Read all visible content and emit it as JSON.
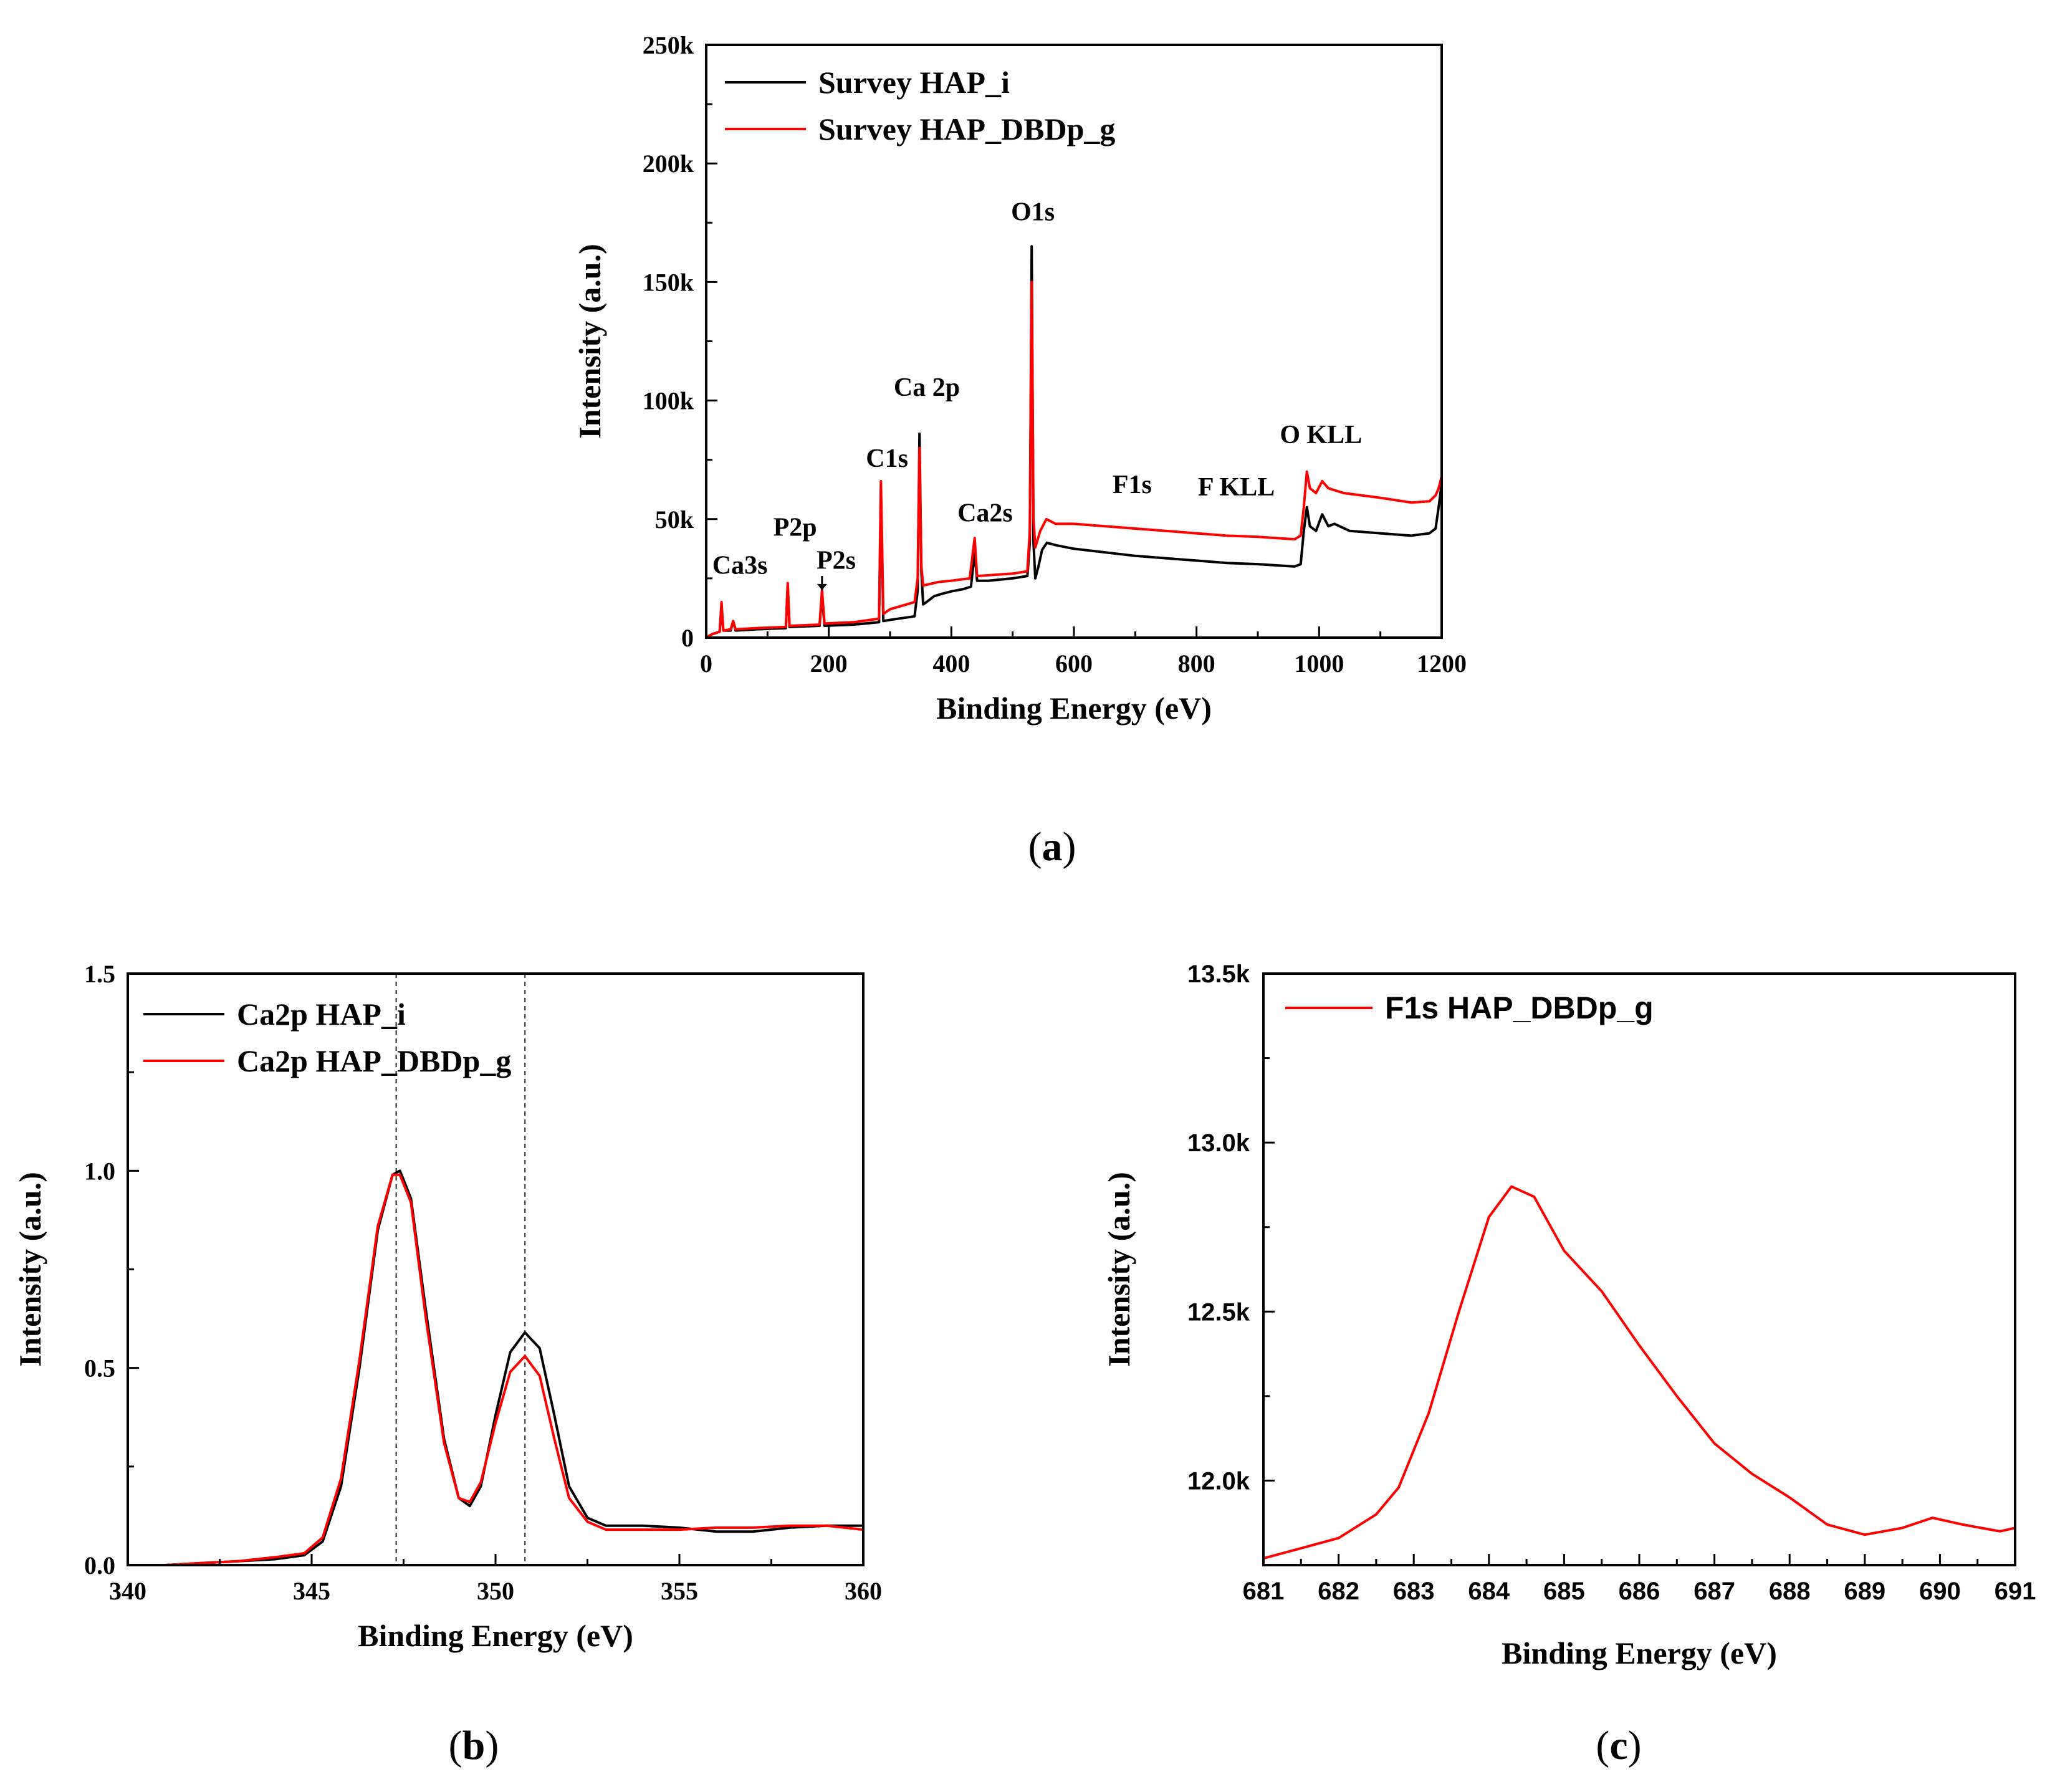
{
  "figure": {
    "captions": {
      "a": "(a)",
      "b": "(b)",
      "c": "(c)"
    },
    "caption_letters": {
      "a": "a",
      "b": "b",
      "c": "c"
    }
  },
  "chart_data": [
    {
      "id": "a",
      "type": "line",
      "title": "",
      "xlabel": "Binding Energy (eV)",
      "ylabel": "Intensity (a.u.)",
      "xlim": [
        0,
        1200
      ],
      "ylim": [
        0,
        250000
      ],
      "x_ticks": [
        0,
        200,
        400,
        600,
        800,
        1000,
        1200
      ],
      "x_tick_labels": [
        "0",
        "200",
        "400",
        "600",
        "800",
        "1000",
        "1200"
      ],
      "y_ticks": [
        0,
        50000,
        100000,
        150000,
        200000,
        250000
      ],
      "y_tick_labels": [
        "0",
        "50k",
        "100k",
        "150k",
        "200k",
        "250k"
      ],
      "legend_position": "top-left",
      "series": [
        {
          "name": "Survey HAP_i",
          "color": "#000000",
          "points": [
            [
              0,
              0
            ],
            [
              10,
              1500
            ],
            [
              22,
              2500
            ],
            [
              25,
              13000
            ],
            [
              28,
              3000
            ],
            [
              40,
              3000
            ],
            [
              44,
              7000
            ],
            [
              48,
              3000
            ],
            [
              80,
              3500
            ],
            [
              130,
              4000
            ],
            [
              133,
              22000
            ],
            [
              136,
              4500
            ],
            [
              185,
              5000
            ],
            [
              189,
              18000
            ],
            [
              193,
              5000
            ],
            [
              240,
              5500
            ],
            [
              282,
              6500
            ],
            [
              285,
              62000
            ],
            [
              289,
              7000
            ],
            [
              300,
              7500
            ],
            [
              340,
              9000
            ],
            [
              345,
              20000
            ],
            [
              348,
              86000
            ],
            [
              351,
              28000
            ],
            [
              354,
              14000
            ],
            [
              362,
              15500
            ],
            [
              372,
              17500
            ],
            [
              385,
              18500
            ],
            [
              400,
              19500
            ],
            [
              420,
              20500
            ],
            [
              432,
              21500
            ],
            [
              438,
              36000
            ],
            [
              442,
              24000
            ],
            [
              460,
              24000
            ],
            [
              500,
              25000
            ],
            [
              524,
              26000
            ],
            [
              528,
              40000
            ],
            [
              531,
              165000
            ],
            [
              534,
              40000
            ],
            [
              537,
              25000
            ],
            [
              542,
              30000
            ],
            [
              548,
              37000
            ],
            [
              556,
              40000
            ],
            [
              570,
              39000
            ],
            [
              600,
              37500
            ],
            [
              650,
              36000
            ],
            [
              700,
              34500
            ],
            [
              750,
              33500
            ],
            [
              800,
              32500
            ],
            [
              850,
              31500
            ],
            [
              900,
              31000
            ],
            [
              960,
              30000
            ],
            [
              970,
              31000
            ],
            [
              975,
              45000
            ],
            [
              980,
              55000
            ],
            [
              985,
              47000
            ],
            [
              995,
              45000
            ],
            [
              1005,
              52000
            ],
            [
              1015,
              47000
            ],
            [
              1025,
              48000
            ],
            [
              1050,
              45000
            ],
            [
              1100,
              44000
            ],
            [
              1150,
              43000
            ],
            [
              1180,
              44000
            ],
            [
              1190,
              46000
            ],
            [
              1195,
              55000
            ],
            [
              1200,
              65000
            ]
          ]
        },
        {
          "name": "Survey HAP_DBDp_g",
          "color": "#ff0000",
          "points": [
            [
              0,
              0
            ],
            [
              10,
              1500
            ],
            [
              22,
              2500
            ],
            [
              25,
              15000
            ],
            [
              28,
              3000
            ],
            [
              40,
              3500
            ],
            [
              44,
              7000
            ],
            [
              48,
              3500
            ],
            [
              80,
              4000
            ],
            [
              130,
              4500
            ],
            [
              133,
              23000
            ],
            [
              136,
              5000
            ],
            [
              185,
              5500
            ],
            [
              189,
              20000
            ],
            [
              193,
              6000
            ],
            [
              240,
              6500
            ],
            [
              282,
              8000
            ],
            [
              285,
              66000
            ],
            [
              289,
              10000
            ],
            [
              300,
              12000
            ],
            [
              340,
              15000
            ],
            [
              345,
              25000
            ],
            [
              348,
              80000
            ],
            [
              351,
              30000
            ],
            [
              354,
              22000
            ],
            [
              380,
              23500
            ],
            [
              400,
              24000
            ],
            [
              430,
              25000
            ],
            [
              438,
              42000
            ],
            [
              442,
              26000
            ],
            [
              470,
              26500
            ],
            [
              500,
              27000
            ],
            [
              524,
              28000
            ],
            [
              528,
              45000
            ],
            [
              531,
              150000
            ],
            [
              534,
              50000
            ],
            [
              537,
              38000
            ],
            [
              545,
              45000
            ],
            [
              555,
              50000
            ],
            [
              570,
              48000
            ],
            [
              600,
              48000
            ],
            [
              650,
              47000
            ],
            [
              700,
              46000
            ],
            [
              750,
              45000
            ],
            [
              800,
              44000
            ],
            [
              850,
              43000
            ],
            [
              900,
              42500
            ],
            [
              960,
              41500
            ],
            [
              970,
              43000
            ],
            [
              975,
              55000
            ],
            [
              980,
              70000
            ],
            [
              985,
              63000
            ],
            [
              995,
              61000
            ],
            [
              1005,
              66000
            ],
            [
              1015,
              63000
            ],
            [
              1040,
              61000
            ],
            [
              1100,
              59000
            ],
            [
              1150,
              57000
            ],
            [
              1180,
              57500
            ],
            [
              1190,
              60000
            ],
            [
              1195,
              63000
            ],
            [
              1200,
              68000
            ]
          ]
        }
      ],
      "annotations": [
        {
          "text": "Ca3s",
          "x": 55,
          "y": 27000
        },
        {
          "text": "P2p",
          "x": 145,
          "y": 43000
        },
        {
          "text": "P2s",
          "x": 212,
          "y": 29000
        },
        {
          "text": "C1s",
          "x": 295,
          "y": 72000
        },
        {
          "text": "Ca 2p",
          "x": 360,
          "y": 102000
        },
        {
          "text": "Ca2s",
          "x": 455,
          "y": 49000
        },
        {
          "text": "O1s",
          "x": 533,
          "y": 176000
        },
        {
          "text": "F1s",
          "x": 695,
          "y": 61000
        },
        {
          "text": "F KLL",
          "x": 865,
          "y": 60000
        },
        {
          "text": "O KLL",
          "x": 1003,
          "y": 82000
        }
      ]
    },
    {
      "id": "b",
      "type": "line",
      "title": "",
      "xlabel": "Binding Energy (eV)",
      "ylabel": "Intensity (a.u.)",
      "xlim": [
        340,
        360
      ],
      "ylim": [
        0,
        1.5
      ],
      "x_ticks": [
        340,
        345,
        350,
        355,
        360
      ],
      "x_tick_labels": [
        "340",
        "345",
        "350",
        "355",
        "360"
      ],
      "y_ticks": [
        0,
        0.5,
        1.0,
        1.5
      ],
      "y_tick_labels": [
        "0.0",
        "0.5",
        "1.0",
        "1.5"
      ],
      "legend_position": "top-left",
      "reference_lines_x": [
        347.3,
        350.8
      ],
      "series": [
        {
          "name": "Ca2p HAP_i",
          "color": "#000000",
          "points": [
            [
              340.5,
              0.0
            ],
            [
              341,
              0.0
            ],
            [
              342,
              0.005
            ],
            [
              343,
              0.01
            ],
            [
              344,
              0.015
            ],
            [
              344.8,
              0.025
            ],
            [
              345.3,
              0.06
            ],
            [
              345.8,
              0.2
            ],
            [
              346.3,
              0.5
            ],
            [
              346.8,
              0.85
            ],
            [
              347.2,
              0.99
            ],
            [
              347.4,
              1.0
            ],
            [
              347.7,
              0.93
            ],
            [
              348.1,
              0.65
            ],
            [
              348.6,
              0.32
            ],
            [
              349.0,
              0.17
            ],
            [
              349.3,
              0.15
            ],
            [
              349.6,
              0.2
            ],
            [
              350.0,
              0.38
            ],
            [
              350.4,
              0.54
            ],
            [
              350.8,
              0.59
            ],
            [
              351.2,
              0.55
            ],
            [
              351.6,
              0.38
            ],
            [
              352.0,
              0.2
            ],
            [
              352.5,
              0.12
            ],
            [
              353,
              0.1
            ],
            [
              354,
              0.1
            ],
            [
              355,
              0.095
            ],
            [
              356,
              0.085
            ],
            [
              357,
              0.085
            ],
            [
              358,
              0.095
            ],
            [
              359,
              0.1
            ],
            [
              360,
              0.1
            ]
          ]
        },
        {
          "name": "Ca2p HAP_DBDp_g",
          "color": "#ff0000",
          "points": [
            [
              341,
              0.0
            ],
            [
              342,
              0.005
            ],
            [
              343,
              0.01
            ],
            [
              344,
              0.02
            ],
            [
              344.8,
              0.03
            ],
            [
              345.3,
              0.07
            ],
            [
              345.8,
              0.22
            ],
            [
              346.3,
              0.52
            ],
            [
              346.8,
              0.86
            ],
            [
              347.2,
              0.99
            ],
            [
              347.4,
              0.99
            ],
            [
              347.7,
              0.92
            ],
            [
              348.1,
              0.63
            ],
            [
              348.6,
              0.31
            ],
            [
              349.0,
              0.17
            ],
            [
              349.3,
              0.16
            ],
            [
              349.6,
              0.21
            ],
            [
              350.0,
              0.36
            ],
            [
              350.4,
              0.49
            ],
            [
              350.8,
              0.53
            ],
            [
              351.2,
              0.48
            ],
            [
              351.6,
              0.32
            ],
            [
              352.0,
              0.17
            ],
            [
              352.5,
              0.11
            ],
            [
              353,
              0.09
            ],
            [
              354,
              0.09
            ],
            [
              355,
              0.09
            ],
            [
              356,
              0.095
            ],
            [
              357,
              0.095
            ],
            [
              358,
              0.1
            ],
            [
              359,
              0.1
            ],
            [
              360,
              0.09
            ]
          ]
        }
      ]
    },
    {
      "id": "c",
      "type": "line",
      "title": "",
      "xlabel": "Binding Energy (eV)",
      "ylabel": "Intensity (a.u.)",
      "xlim": [
        681,
        691
      ],
      "ylim": [
        11750,
        13500
      ],
      "x_ticks": [
        681,
        682,
        683,
        684,
        685,
        686,
        687,
        688,
        689,
        690,
        691
      ],
      "x_tick_labels": [
        "681",
        "682",
        "683",
        "684",
        "685",
        "686",
        "687",
        "688",
        "689",
        "690",
        "691"
      ],
      "y_ticks": [
        12000,
        12500,
        13000,
        13500
      ],
      "y_tick_labels": [
        "12.0k",
        "12.5k",
        "13.0k",
        "13.5k"
      ],
      "legend_position": "top-left",
      "series": [
        {
          "name": "F1s HAP_DBDp_g",
          "color": "#ff0000",
          "points": [
            [
              681,
              11770
            ],
            [
              681.5,
              11800
            ],
            [
              682,
              11830
            ],
            [
              682.5,
              11900
            ],
            [
              682.8,
              11980
            ],
            [
              683.2,
              12200
            ],
            [
              683.6,
              12500
            ],
            [
              684.0,
              12780
            ],
            [
              684.3,
              12870
            ],
            [
              684.6,
              12840
            ],
            [
              685.0,
              12680
            ],
            [
              685.5,
              12560
            ],
            [
              686.0,
              12400
            ],
            [
              686.5,
              12250
            ],
            [
              687.0,
              12110
            ],
            [
              687.5,
              12020
            ],
            [
              688.0,
              11950
            ],
            [
              688.5,
              11870
            ],
            [
              689.0,
              11840
            ],
            [
              689.5,
              11860
            ],
            [
              689.9,
              11890
            ],
            [
              690.3,
              11870
            ],
            [
              690.8,
              11850
            ],
            [
              691,
              11860
            ]
          ]
        }
      ]
    }
  ]
}
